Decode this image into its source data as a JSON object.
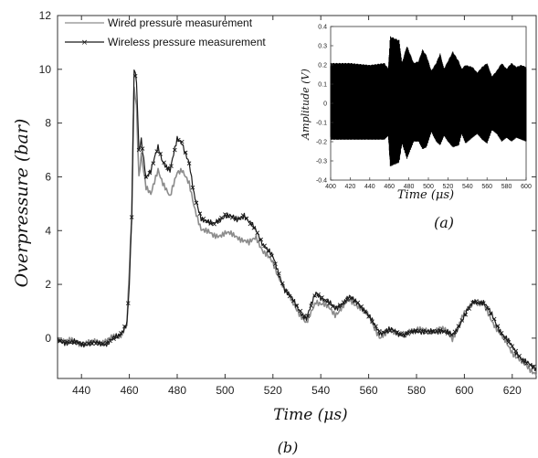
{
  "chart_data": [
    {
      "type": "line",
      "caption": "(b)",
      "xlabel": "Time (μs)",
      "ylabel": "Overpressure (bar)",
      "xlim": [
        430,
        630
      ],
      "ylim": [
        -1.5,
        12
      ],
      "xticks": [
        440,
        460,
        480,
        500,
        520,
        540,
        560,
        580,
        600,
        620
      ],
      "yticks": [
        0,
        2,
        4,
        6,
        8,
        10,
        12
      ],
      "legend_position": "top-right",
      "grid": false,
      "series": [
        {
          "name": "Wired pressure measurement",
          "color": "#8c8c8c",
          "marker": "none",
          "points": [
            [
              430,
              0.0
            ],
            [
              440,
              -0.2
            ],
            [
              450,
              -0.1
            ],
            [
              456,
              0.1
            ],
            [
              459,
              0.5
            ],
            [
              461,
              4.5
            ],
            [
              462,
              9.3
            ],
            [
              463,
              8.6
            ],
            [
              464,
              6.0
            ],
            [
              465,
              6.9
            ],
            [
              467,
              5.6
            ],
            [
              469,
              5.3
            ],
            [
              472,
              6.3
            ],
            [
              474,
              5.8
            ],
            [
              477,
              5.2
            ],
            [
              480,
              6.2
            ],
            [
              482,
              6.3
            ],
            [
              485,
              5.7
            ],
            [
              487,
              4.9
            ],
            [
              490,
              4.1
            ],
            [
              495,
              3.8
            ],
            [
              500,
              3.9
            ],
            [
              505,
              3.8
            ],
            [
              510,
              3.5
            ],
            [
              513,
              3.8
            ],
            [
              516,
              3.2
            ],
            [
              520,
              2.8
            ],
            [
              525,
              1.8
            ],
            [
              530,
              1.1
            ],
            [
              534,
              0.5
            ],
            [
              538,
              1.4
            ],
            [
              542,
              1.2
            ],
            [
              546,
              0.9
            ],
            [
              552,
              1.4
            ],
            [
              556,
              1.2
            ],
            [
              560,
              0.8
            ],
            [
              565,
              0.0
            ],
            [
              570,
              0.3
            ],
            [
              575,
              0.1
            ],
            [
              580,
              0.4
            ],
            [
              585,
              0.2
            ],
            [
              590,
              0.4
            ],
            [
              595,
              0.0
            ],
            [
              600,
              0.9
            ],
            [
              604,
              1.4
            ],
            [
              608,
              1.2
            ],
            [
              612,
              0.6
            ],
            [
              616,
              0.0
            ],
            [
              620,
              -0.5
            ],
            [
              625,
              -1.0
            ],
            [
              630,
              -1.3
            ]
          ]
        },
        {
          "name": "Wireless pressure measurement",
          "color": "#1a1a1a",
          "marker": "x",
          "points": [
            [
              430,
              -0.1
            ],
            [
              440,
              -0.2
            ],
            [
              450,
              -0.2
            ],
            [
              456,
              0.1
            ],
            [
              459,
              0.6
            ],
            [
              460,
              2.0
            ],
            [
              461,
              4.5
            ],
            [
              462,
              10.0
            ],
            [
              463,
              9.5
            ],
            [
              464,
              7.0
            ],
            [
              465,
              7.4
            ],
            [
              467,
              6.0
            ],
            [
              469,
              6.2
            ],
            [
              472,
              7.1
            ],
            [
              474,
              6.6
            ],
            [
              477,
              6.2
            ],
            [
              480,
              7.4
            ],
            [
              482,
              7.3
            ],
            [
              485,
              6.5
            ],
            [
              487,
              5.3
            ],
            [
              490,
              4.5
            ],
            [
              495,
              4.2
            ],
            [
              500,
              4.6
            ],
            [
              505,
              4.4
            ],
            [
              508,
              4.6
            ],
            [
              510,
              4.3
            ],
            [
              513,
              4.0
            ],
            [
              516,
              3.5
            ],
            [
              520,
              3.0
            ],
            [
              525,
              1.8
            ],
            [
              530,
              1.2
            ],
            [
              534,
              0.7
            ],
            [
              538,
              1.7
            ],
            [
              542,
              1.4
            ],
            [
              546,
              1.1
            ],
            [
              552,
              1.5
            ],
            [
              556,
              1.3
            ],
            [
              560,
              0.8
            ],
            [
              565,
              0.2
            ],
            [
              570,
              0.3
            ],
            [
              575,
              0.1
            ],
            [
              580,
              0.3
            ],
            [
              585,
              0.2
            ],
            [
              590,
              0.3
            ],
            [
              595,
              0.1
            ],
            [
              600,
              0.8
            ],
            [
              604,
              1.4
            ],
            [
              608,
              1.3
            ],
            [
              612,
              0.8
            ],
            [
              616,
              0.1
            ],
            [
              620,
              -0.3
            ],
            [
              625,
              -0.9
            ],
            [
              630,
              -1.1
            ]
          ]
        }
      ]
    },
    {
      "type": "line",
      "caption": "(a)",
      "xlabel": "Time (μs)",
      "ylabel": "Amplitude (V)",
      "xlim": [
        400,
        600
      ],
      "ylim": [
        -0.4,
        0.4
      ],
      "xticks": [
        400,
        420,
        440,
        460,
        480,
        500,
        520,
        540,
        560,
        580,
        600
      ],
      "yticks": [
        -0.4,
        -0.3,
        -0.2,
        -0.1,
        0,
        0.1,
        0.2,
        0.3,
        0.4
      ],
      "grid": false,
      "series": [
        {
          "color": "#000000",
          "envelope": [
            [
              400,
              0.21
            ],
            [
              420,
              0.21
            ],
            [
              440,
              0.2
            ],
            [
              455,
              0.21
            ],
            [
              459,
              0.18
            ],
            [
              461,
              0.35
            ],
            [
              465,
              0.34
            ],
            [
              470,
              0.33
            ],
            [
              473,
              0.21
            ],
            [
              478,
              0.3
            ],
            [
              485,
              0.21
            ],
            [
              490,
              0.22
            ],
            [
              494,
              0.28
            ],
            [
              498,
              0.25
            ],
            [
              503,
              0.17
            ],
            [
              508,
              0.21
            ],
            [
              512,
              0.26
            ],
            [
              516,
              0.18
            ],
            [
              520,
              0.22
            ],
            [
              525,
              0.27
            ],
            [
              531,
              0.22
            ],
            [
              534,
              0.18
            ],
            [
              538,
              0.2
            ],
            [
              545,
              0.19
            ],
            [
              550,
              0.16
            ],
            [
              555,
              0.19
            ],
            [
              560,
              0.21
            ],
            [
              565,
              0.14
            ],
            [
              570,
              0.17
            ],
            [
              575,
              0.21
            ],
            [
              580,
              0.18
            ],
            [
              585,
              0.21
            ],
            [
              590,
              0.19
            ],
            [
              595,
              0.2
            ],
            [
              600,
              0.19
            ]
          ],
          "envelope_neg": [
            [
              400,
              -0.19
            ],
            [
              420,
              -0.19
            ],
            [
              440,
              -0.19
            ],
            [
              455,
              -0.19
            ],
            [
              459,
              -0.17
            ],
            [
              461,
              -0.33
            ],
            [
              465,
              -0.32
            ],
            [
              470,
              -0.31
            ],
            [
              473,
              -0.21
            ],
            [
              478,
              -0.29
            ],
            [
              485,
              -0.2
            ],
            [
              490,
              -0.2
            ],
            [
              494,
              -0.24
            ],
            [
              498,
              -0.23
            ],
            [
              503,
              -0.15
            ],
            [
              508,
              -0.2
            ],
            [
              512,
              -0.22
            ],
            [
              516,
              -0.17
            ],
            [
              520,
              -0.2
            ],
            [
              525,
              -0.23
            ],
            [
              531,
              -0.22
            ],
            [
              534,
              -0.16
            ],
            [
              538,
              -0.21
            ],
            [
              545,
              -0.18
            ],
            [
              550,
              -0.16
            ],
            [
              555,
              -0.19
            ],
            [
              560,
              -0.21
            ],
            [
              565,
              -0.14
            ],
            [
              570,
              -0.16
            ],
            [
              575,
              -0.2
            ],
            [
              580,
              -0.18
            ],
            [
              585,
              -0.2
            ],
            [
              590,
              -0.18
            ],
            [
              595,
              -0.19
            ],
            [
              600,
              -0.2
            ]
          ]
        }
      ]
    }
  ]
}
